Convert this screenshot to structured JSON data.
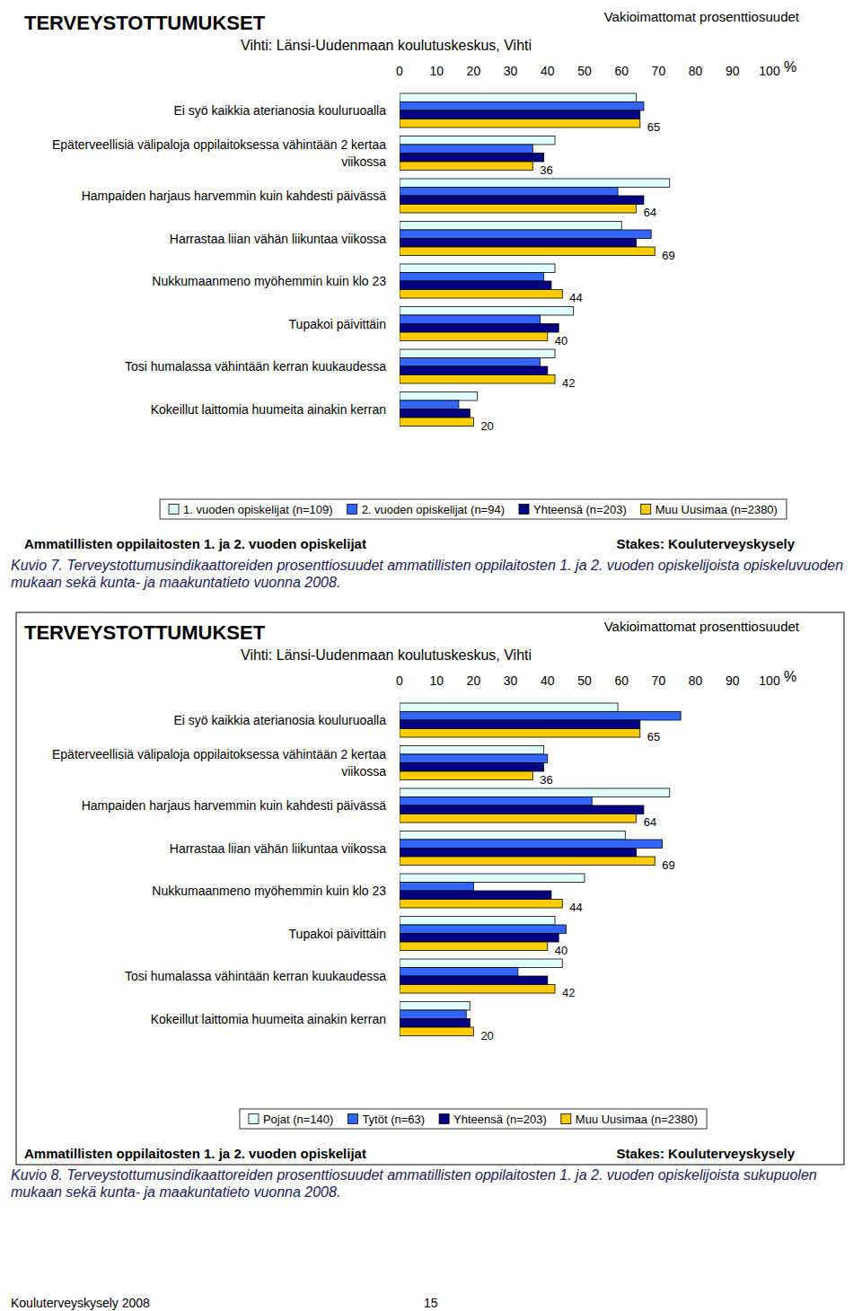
{
  "page": {
    "footer": "Kouluterveyskysely 2008",
    "page_number": "15"
  },
  "chart_data": [
    {
      "type": "bar",
      "orientation": "horizontal",
      "title": "TERVEYSTOTTUMUKSET",
      "subtitle": "Vihti: Länsi-Uudenmaan koulutuskeskus, Vihti",
      "annotations": {
        "top_right": "Vakioimattomat prosenttiosuudet",
        "bottom_left": "Ammatillisten oppilaitosten 1. ja 2. vuoden opiskelijat",
        "bottom_right": "Stakes: Kouluterveyskysely"
      },
      "x_label": "%",
      "caption": "Kuvio 7. Terveystottumusindikaattoreiden prosenttiosuudet ammatillisten oppilaitosten 1. ja 2. vuoden opiskelijoista opiskeluvuoden mukaan sekä kunta- ja maakuntatieto vuonna 2008.",
      "categories": [
        "Ei syö kaikkia aterianosia kouluruoalla",
        "Epäterveellisiä välipaloja oppilaitoksessa vähintään 2 kertaa viikossa",
        "Hampaiden harjaus harvemmin kuin kahdesti päivässä",
        "Harrastaa liian vähän liikuntaa viikossa",
        "Nukkumaanmeno myöhemmin kuin klo 23",
        "Tupakoi päivittäin",
        "Tosi humalassa vähintään kerran kuukaudessa",
        "Kokeillut laittomia huumeita ainakin kerran"
      ],
      "series": [
        {
          "name": "1. vuoden opiskelijat (n=109)",
          "color": "#e0ffff",
          "values": [
            64,
            42,
            73,
            60,
            42,
            47,
            42,
            21
          ]
        },
        {
          "name": "2. vuoden opiskelijat (n=94)",
          "color": "#3366ff",
          "values": [
            66,
            36,
            59,
            68,
            39,
            38,
            38,
            16
          ]
        },
        {
          "name": "Yhteensä (n=203)",
          "color": "#000080",
          "values": [
            65,
            39,
            66,
            64,
            41,
            43,
            40,
            19
          ]
        },
        {
          "name": "Muu Uusimaa (n=2380)",
          "color": "#ffcc00",
          "data_labels": true,
          "values": [
            65,
            36,
            64,
            69,
            44,
            40,
            42,
            20
          ]
        }
      ],
      "xlim": [
        0,
        100
      ],
      "xticks": [
        0,
        10,
        20,
        30,
        40,
        50,
        60,
        70,
        80,
        90,
        100
      ],
      "tick_labels": "x",
      "grid": false,
      "legend": "bottom"
    },
    {
      "type": "bar",
      "orientation": "horizontal",
      "title": "TERVEYSTOTTUMUKSET",
      "subtitle": "Vihti: Länsi-Uudenmaan koulutuskeskus, Vihti",
      "annotations": {
        "top_right": "Vakioimattomat prosenttiosuudet",
        "bottom_left": "Ammatillisten oppilaitosten 1. ja 2. vuoden opiskelijat",
        "bottom_right": "Stakes: Kouluterveyskysely"
      },
      "x_label": "%",
      "caption": "Kuvio 8. Terveystottumusindikaattoreiden prosenttiosuudet ammatillisten oppilaitosten 1. ja 2. vuoden opiskelijoista sukupuolen mukaan sekä kunta- ja maakuntatieto vuonna 2008.",
      "categories": [
        "Ei syö kaikkia aterianosia kouluruoalla",
        "Epäterveellisiä välipaloja oppilaitoksessa vähintään 2 kertaa viikossa",
        "Hampaiden harjaus harvemmin kuin kahdesti päivässä",
        "Harrastaa liian vähän liikuntaa viikossa",
        "Nukkumaanmeno myöhemmin kuin klo 23",
        "Tupakoi päivittäin",
        "Tosi humalassa vähintään kerran kuukaudessa",
        "Kokeillut laittomia huumeita ainakin kerran"
      ],
      "series": [
        {
          "name": "Pojat (n=140)",
          "color": "#e0ffff",
          "values": [
            59,
            39,
            73,
            61,
            50,
            42,
            44,
            19
          ]
        },
        {
          "name": "Tytöt (n=63)",
          "color": "#3366ff",
          "values": [
            76,
            40,
            52,
            71,
            20,
            45,
            32,
            18
          ]
        },
        {
          "name": "Yhteensä (n=203)",
          "color": "#000080",
          "values": [
            65,
            39,
            66,
            64,
            41,
            43,
            40,
            19
          ]
        },
        {
          "name": "Muu Uusimaa (n=2380)",
          "color": "#ffcc00",
          "data_labels": true,
          "values": [
            65,
            36,
            64,
            69,
            44,
            40,
            42,
            20
          ]
        }
      ],
      "xlim": [
        0,
        100
      ],
      "xticks": [
        0,
        10,
        20,
        30,
        40,
        50,
        60,
        70,
        80,
        90,
        100
      ],
      "tick_labels": "x",
      "grid": false,
      "legend": "bottom"
    }
  ]
}
